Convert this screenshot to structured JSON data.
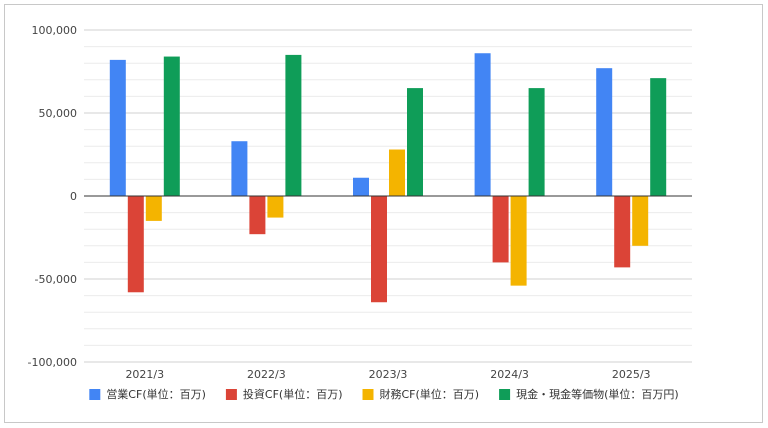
{
  "chart_data": {
    "type": "bar",
    "title": "",
    "xlabel": "",
    "ylabel": "",
    "categories": [
      "2021/3",
      "2022/3",
      "2023/3",
      "2024/3",
      "2025/3"
    ],
    "series": [
      {
        "name": "営業CF(単位：百万)",
        "color": "#4285f4",
        "values": [
          82000,
          33000,
          11000,
          86000,
          77000
        ]
      },
      {
        "name": "投資CF(単位：百万)",
        "color": "#db4437",
        "values": [
          -58000,
          -23000,
          -64000,
          -40000,
          -43000
        ]
      },
      {
        "name": "財務CF(単位：百万)",
        "color": "#f4b400",
        "values": [
          -15000,
          -13000,
          28000,
          -54000,
          -30000
        ]
      },
      {
        "name": "現金・現金等価物(単位：百万円)",
        "color": "#0f9d58",
        "values": [
          84000,
          85000,
          65000,
          65000,
          71000
        ]
      }
    ],
    "ylim": [
      -100000,
      100000
    ],
    "yticks": [
      100000,
      50000,
      0,
      -50000,
      -100000
    ],
    "ytick_labels": [
      "100,000",
      "50,000",
      "0",
      "-50,000",
      "-100,000"
    ],
    "grid": true,
    "legend_position": "bottom"
  }
}
